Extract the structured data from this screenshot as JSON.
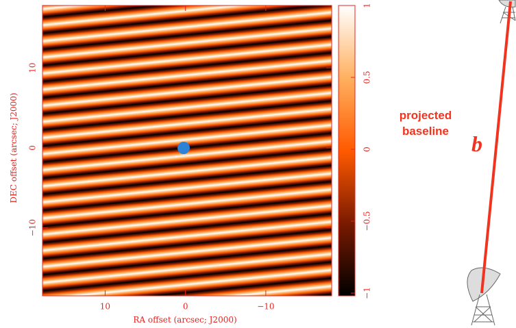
{
  "chart_data": {
    "type": "heatmap",
    "xlabel": "RA offset (arcsec; J2000)",
    "ylabel": "DEC offset (arcsec; J2000)",
    "xlim": [
      17.8,
      -18.2
    ],
    "xticks": [
      10,
      0,
      {
        "value": -10,
        "label": "−10"
      }
    ],
    "ylim": [
      -18.5,
      17.8
    ],
    "yticks": [
      {
        "value": -10,
        "label": "−10"
      },
      0,
      10
    ],
    "colorbar": {
      "ylim": [
        -1,
        1
      ],
      "yticks": [
        {
          "value": -1,
          "label": "−1"
        },
        {
          "value": -0.5,
          "label": "−0.5"
        },
        0,
        0.5,
        1
      ]
    },
    "colormap": [
      "#000000",
      "#7a1a00",
      "#ff5a00",
      "#ffb060",
      "#ffffff"
    ],
    "annotations": [
      "projected",
      "baseline",
      "b"
    ]
  }
}
